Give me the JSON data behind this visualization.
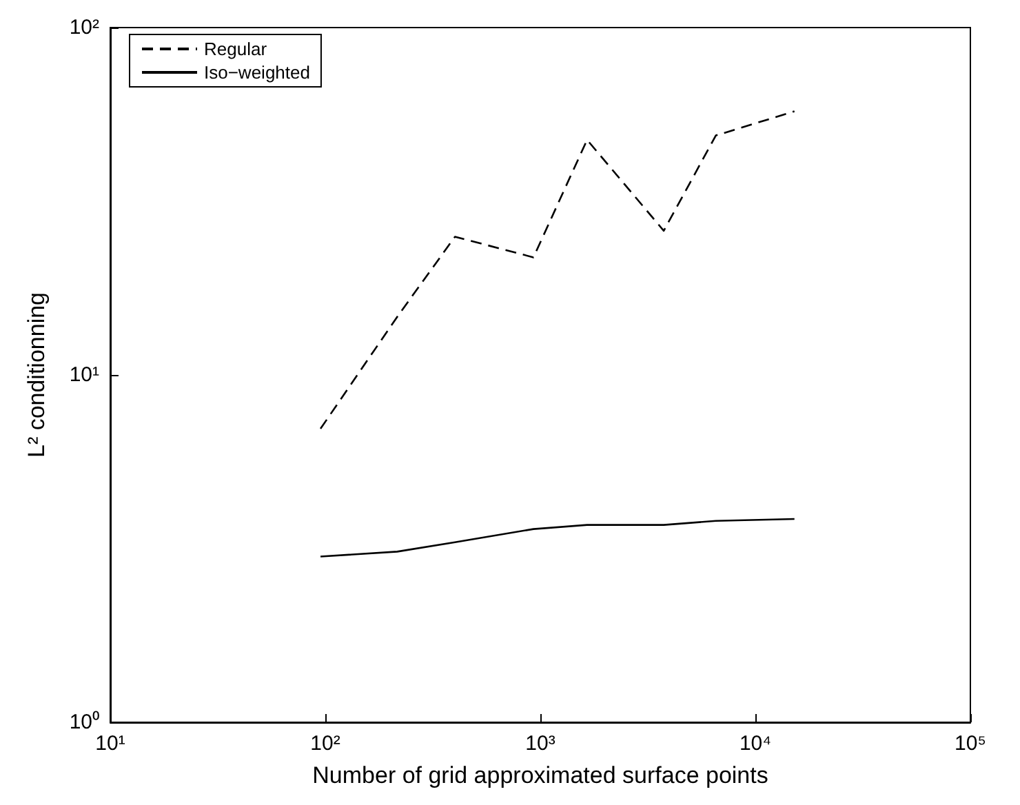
{
  "chart_data": {
    "type": "line",
    "xlabel": "Number of grid approximated surface points",
    "ylabel": "L² conditionning",
    "x": [
      95,
      216,
      401,
      929,
      1650,
      3750,
      6550,
      15200
    ],
    "series": [
      {
        "name": "Regular",
        "color": "#000000",
        "line_style": "dashed",
        "values": [
          7.0,
          14.7,
          25.0,
          21.8,
          47.5,
          26.0,
          48.9,
          57.4
        ]
      },
      {
        "name": "Iso−weighted",
        "color": "#000000",
        "line_style": "solid",
        "values": [
          3.0,
          3.1,
          3.3,
          3.6,
          3.7,
          3.7,
          3.8,
          3.85
        ]
      }
    ],
    "log": "xy",
    "xlim": [
      10,
      100000
    ],
    "ylim": [
      1,
      100
    ],
    "xticks": [
      {
        "value": 10,
        "label": "10¹"
      },
      {
        "value": 100,
        "label": "10²"
      },
      {
        "value": 1000,
        "label": "10³"
      },
      {
        "value": 10000,
        "label": "10⁴"
      },
      {
        "value": 100000,
        "label": "10⁵"
      }
    ],
    "yticks": [
      {
        "value": 1,
        "label": "10⁰"
      },
      {
        "value": 10,
        "label": "10¹"
      },
      {
        "value": 100,
        "label": "10²"
      }
    ],
    "grid": false,
    "legend": "top left",
    "marker": "none"
  }
}
